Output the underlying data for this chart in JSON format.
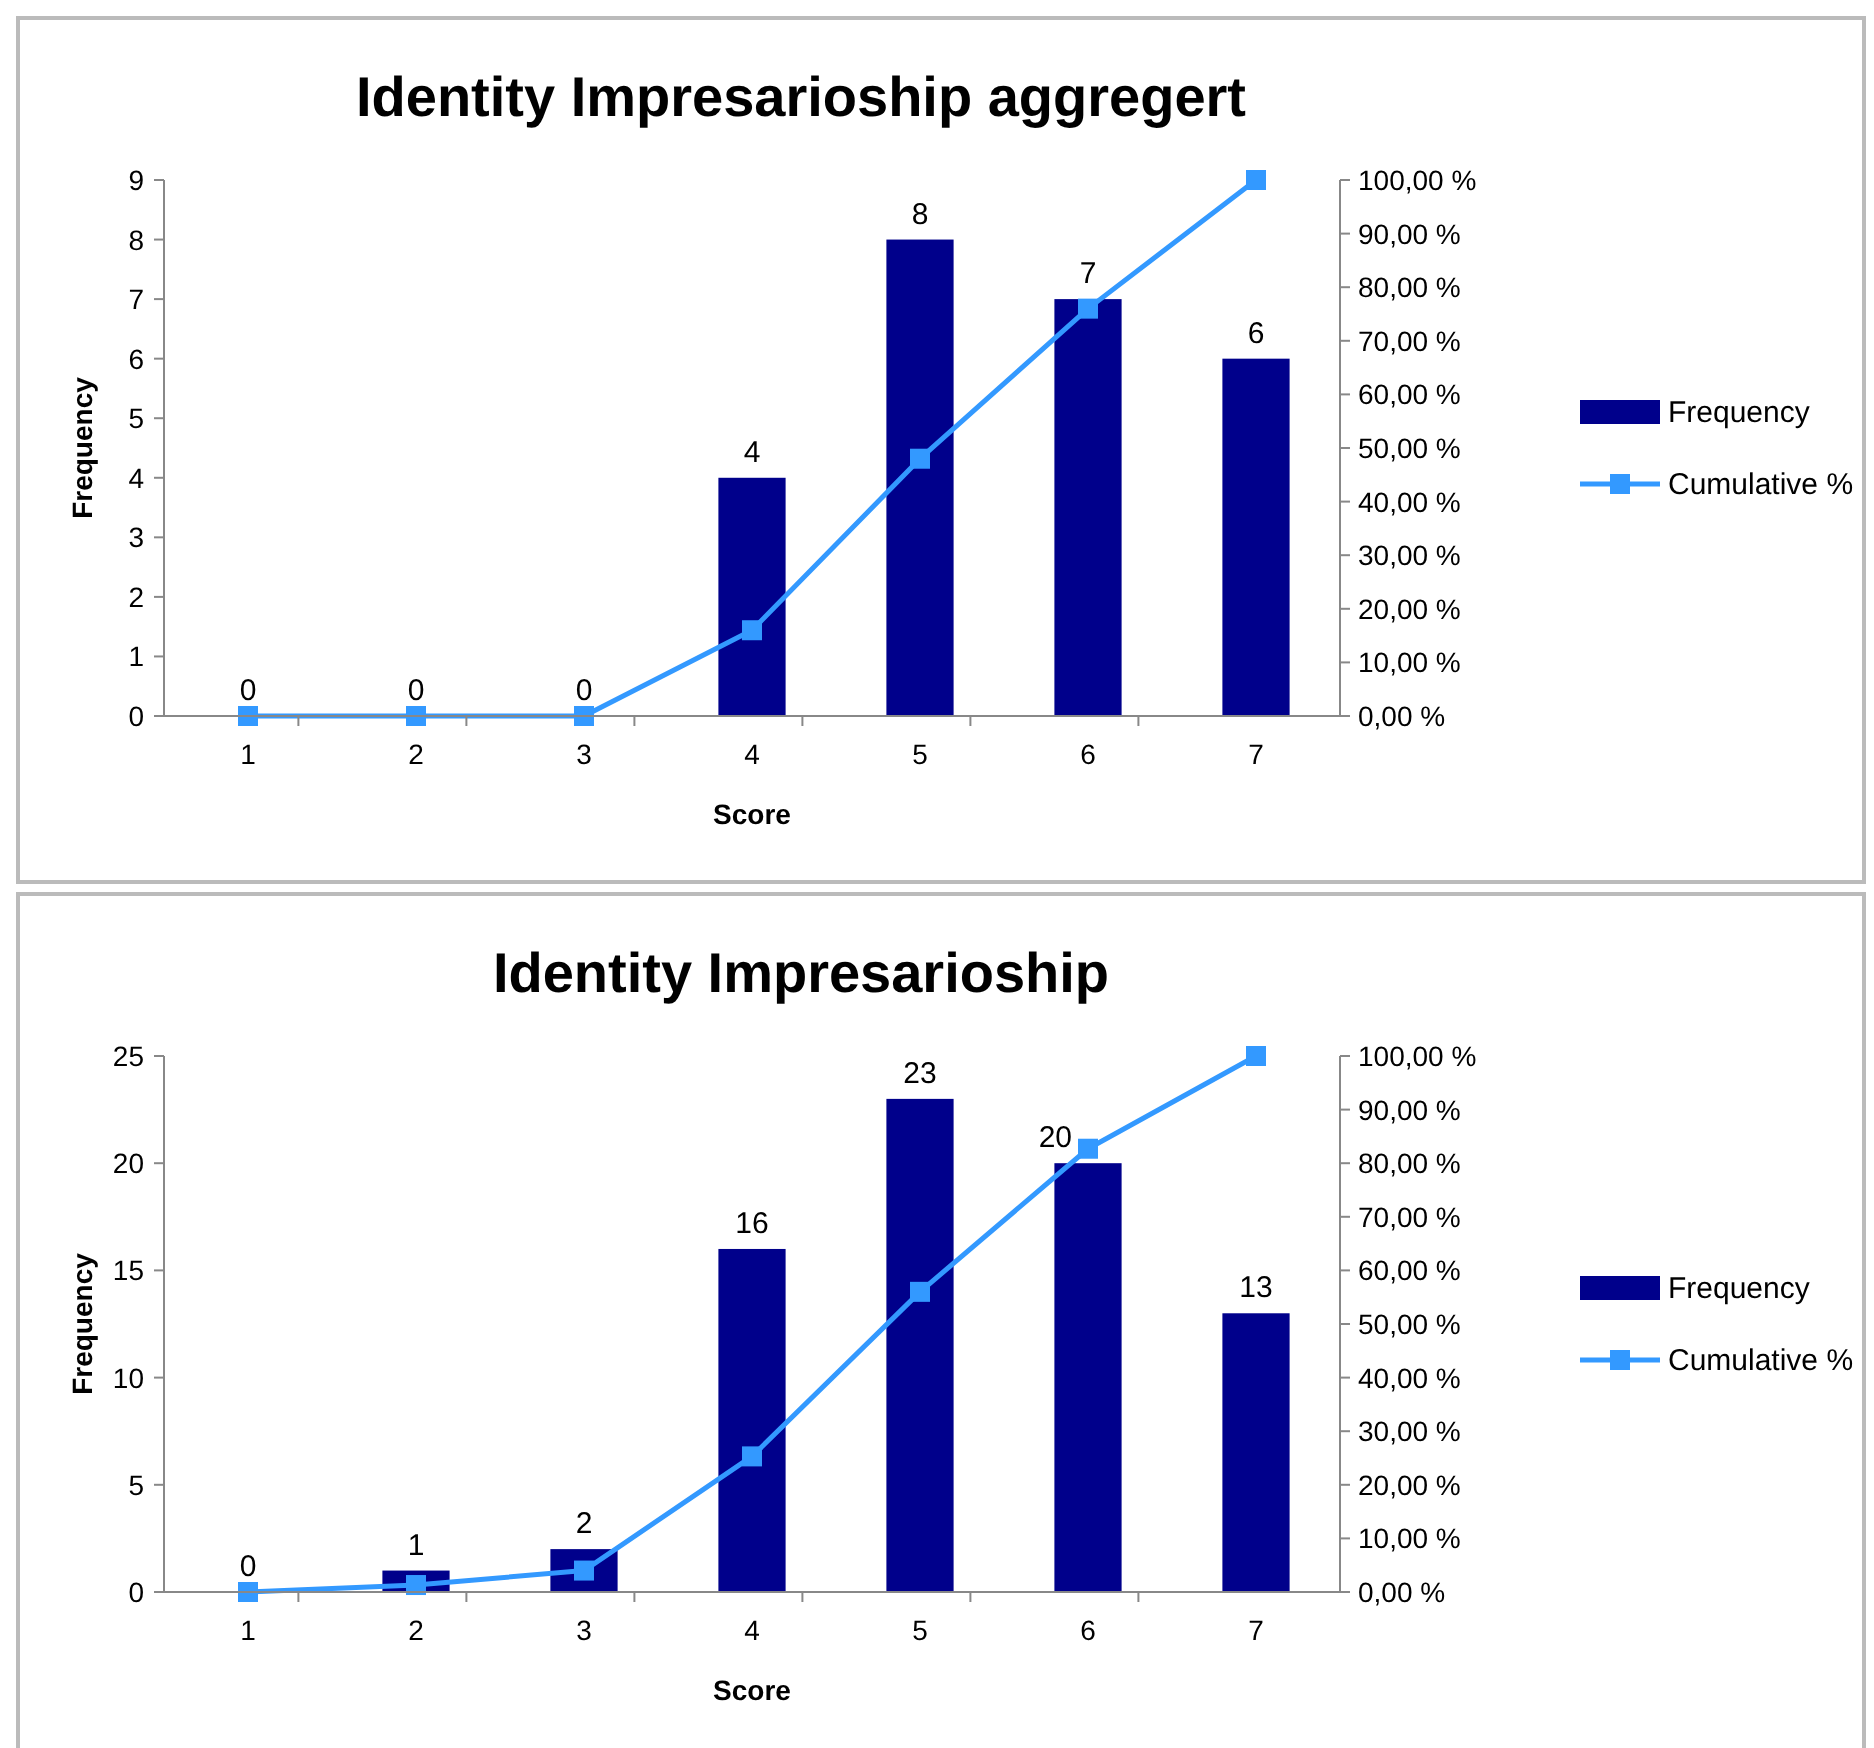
{
  "chart_data": [
    {
      "type": "bar",
      "title": "Identity Impresarioship aggregert",
      "xlabel": "Score",
      "ylabel": "Frequency",
      "categories": [
        "1",
        "2",
        "3",
        "4",
        "5",
        "6",
        "7"
      ],
      "series": [
        {
          "name": "Frequency",
          "color": "#00008b",
          "values": [
            0,
            0,
            0,
            4,
            8,
            7,
            6
          ],
          "value_labels": [
            "0",
            "0",
            "0",
            "4",
            "8",
            "7",
            "6"
          ]
        },
        {
          "name": "Cumulative %",
          "type": "line",
          "axis": "y2",
          "color": "#3399ff",
          "values": [
            0,
            0,
            0,
            16,
            48,
            76,
            100
          ]
        }
      ],
      "ylim": [
        0,
        9
      ],
      "yticks": [
        0,
        1,
        2,
        3,
        4,
        5,
        6,
        7,
        8,
        9
      ],
      "y2lim": [
        0,
        100
      ],
      "y2ticks": [
        {
          "value": 0,
          "label": "0,00 %"
        },
        {
          "value": 10,
          "label": "10,00 %"
        },
        {
          "value": 20,
          "label": "20,00 %"
        },
        {
          "value": 30,
          "label": "30,00 %"
        },
        {
          "value": 40,
          "label": "40,00 %"
        },
        {
          "value": 50,
          "label": "50,00 %"
        },
        {
          "value": 60,
          "label": "60,00 %"
        },
        {
          "value": 70,
          "label": "70,00 %"
        },
        {
          "value": 80,
          "label": "80,00 %"
        },
        {
          "value": 90,
          "label": "90,00 %"
        },
        {
          "value": 100,
          "label": "100,00 %"
        }
      ],
      "legend": "right",
      "marker": "square"
    },
    {
      "type": "bar",
      "title": "Identity Impresarioship",
      "xlabel": "Score",
      "ylabel": "Frequency",
      "categories": [
        "1",
        "2",
        "3",
        "4",
        "5",
        "6",
        "7"
      ],
      "series": [
        {
          "name": "Frequency",
          "color": "#00008b",
          "values": [
            0,
            1,
            2,
            16,
            23,
            20,
            13
          ],
          "value_labels": [
            "0",
            "1",
            "2",
            "16",
            "23",
            "20",
            "13"
          ]
        },
        {
          "name": "Cumulative %",
          "type": "line",
          "axis": "y2",
          "color": "#3399ff",
          "values": [
            0,
            1.3,
            4,
            25.3,
            56,
            82.7,
            100
          ]
        }
      ],
      "ylim": [
        0,
        25
      ],
      "yticks": [
        0,
        5,
        10,
        15,
        20,
        25
      ],
      "y2lim": [
        0,
        100
      ],
      "y2ticks": [
        {
          "value": 0,
          "label": "0,00 %"
        },
        {
          "value": 10,
          "label": "10,00 %"
        },
        {
          "value": 20,
          "label": "20,00 %"
        },
        {
          "value": 30,
          "label": "30,00 %"
        },
        {
          "value": 40,
          "label": "40,00 %"
        },
        {
          "value": 50,
          "label": "50,00 %"
        },
        {
          "value": 60,
          "label": "60,00 %"
        },
        {
          "value": 70,
          "label": "70,00 %"
        },
        {
          "value": 80,
          "label": "80,00 %"
        },
        {
          "value": 90,
          "label": "90,00 %"
        },
        {
          "value": 100,
          "label": "100,00 %"
        }
      ],
      "legend": "right",
      "marker": "square"
    }
  ]
}
